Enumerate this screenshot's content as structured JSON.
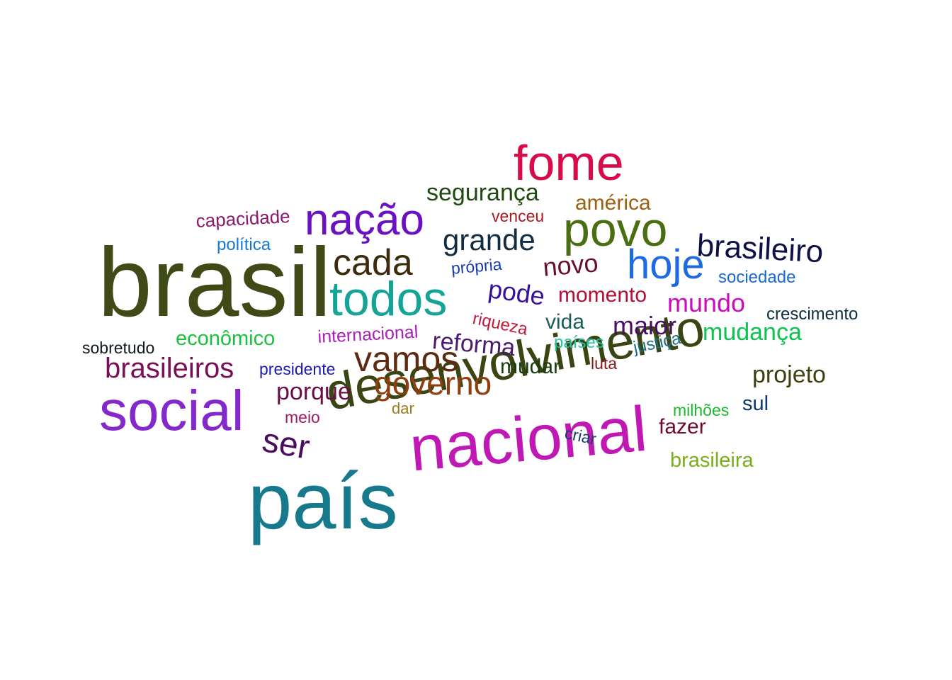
{
  "words": [
    {
      "text": "brasil",
      "color": "#3f4a16"
    },
    {
      "text": "país",
      "color": "#167a8c"
    },
    {
      "text": "nacional",
      "color": "#c018b5"
    },
    {
      "text": "desenvolvimento",
      "color": "#3a4514"
    },
    {
      "text": "social",
      "color": "#8428cc"
    },
    {
      "text": "fome",
      "color": "#d80b4a"
    },
    {
      "text": "povo",
      "color": "#4a6e12"
    },
    {
      "text": "todos",
      "color": "#15a396"
    },
    {
      "text": "nação",
      "color": "#6a12c2"
    },
    {
      "text": "hoje",
      "color": "#1d6ae2"
    },
    {
      "text": "cada",
      "color": "#3d2b0e"
    },
    {
      "text": "vamos",
      "color": "#5e2a0f"
    },
    {
      "text": "governo",
      "color": "#8f3e0e"
    },
    {
      "text": "brasileiro",
      "color": "#101048"
    },
    {
      "text": "grande",
      "color": "#122c41"
    },
    {
      "text": "brasileiros",
      "color": "#7a0f58"
    },
    {
      "text": "segurança",
      "color": "#1e4910"
    },
    {
      "text": "ser",
      "color": "#4a0d5e"
    },
    {
      "text": "projeto",
      "color": "#3f3f10"
    },
    {
      "text": "mudança",
      "color": "#0dc24e"
    },
    {
      "text": "porque",
      "color": "#6a0e48"
    },
    {
      "text": "maior",
      "color": "#4a0f62"
    },
    {
      "text": "mundo",
      "color": "#c80dbf"
    },
    {
      "text": "pode",
      "color": "#3a0e9e"
    },
    {
      "text": "novo",
      "color": "#6a0e2c"
    },
    {
      "text": "reforma",
      "color": "#4a1a6e"
    },
    {
      "text": "mudar",
      "color": "#1c3d0e"
    },
    {
      "text": "américa",
      "color": "#9e600e"
    },
    {
      "text": "momento",
      "color": "#b30d38"
    },
    {
      "text": "vida",
      "color": "#1a5f59"
    },
    {
      "text": "fazer",
      "color": "#6e0d2a"
    },
    {
      "text": "econômico",
      "color": "#18c23c"
    },
    {
      "text": "capacidade",
      "color": "#8a186e"
    },
    {
      "text": "brasileira",
      "color": "#7aae1a"
    },
    {
      "text": "sul",
      "color": "#10376e"
    },
    {
      "text": "crescimento",
      "color": "#0d2e3d"
    },
    {
      "text": "sociedade",
      "color": "#1869d1"
    },
    {
      "text": "política",
      "color": "#1877d1"
    },
    {
      "text": "sobretudo",
      "color": "#101820"
    },
    {
      "text": "presidente",
      "color": "#1a1ab3"
    },
    {
      "text": "internacional",
      "color": "#a920b8"
    },
    {
      "text": "riqueza",
      "color": "#c21a3d"
    },
    {
      "text": "países",
      "color": "#24c4a4"
    },
    {
      "text": "justiça",
      "color": "#1a6e8a"
    },
    {
      "text": "própria",
      "color": "#1a3dae"
    },
    {
      "text": "venceu",
      "color": "#a8181e"
    },
    {
      "text": "luta",
      "color": "#8a1a18"
    },
    {
      "text": "milhões",
      "color": "#1cb82e"
    },
    {
      "text": "meio",
      "color": "#9e1a6e"
    },
    {
      "text": "dar",
      "color": "#9e7a1a"
    },
    {
      "text": "criar",
      "color": "#1a3d6e"
    }
  ]
}
